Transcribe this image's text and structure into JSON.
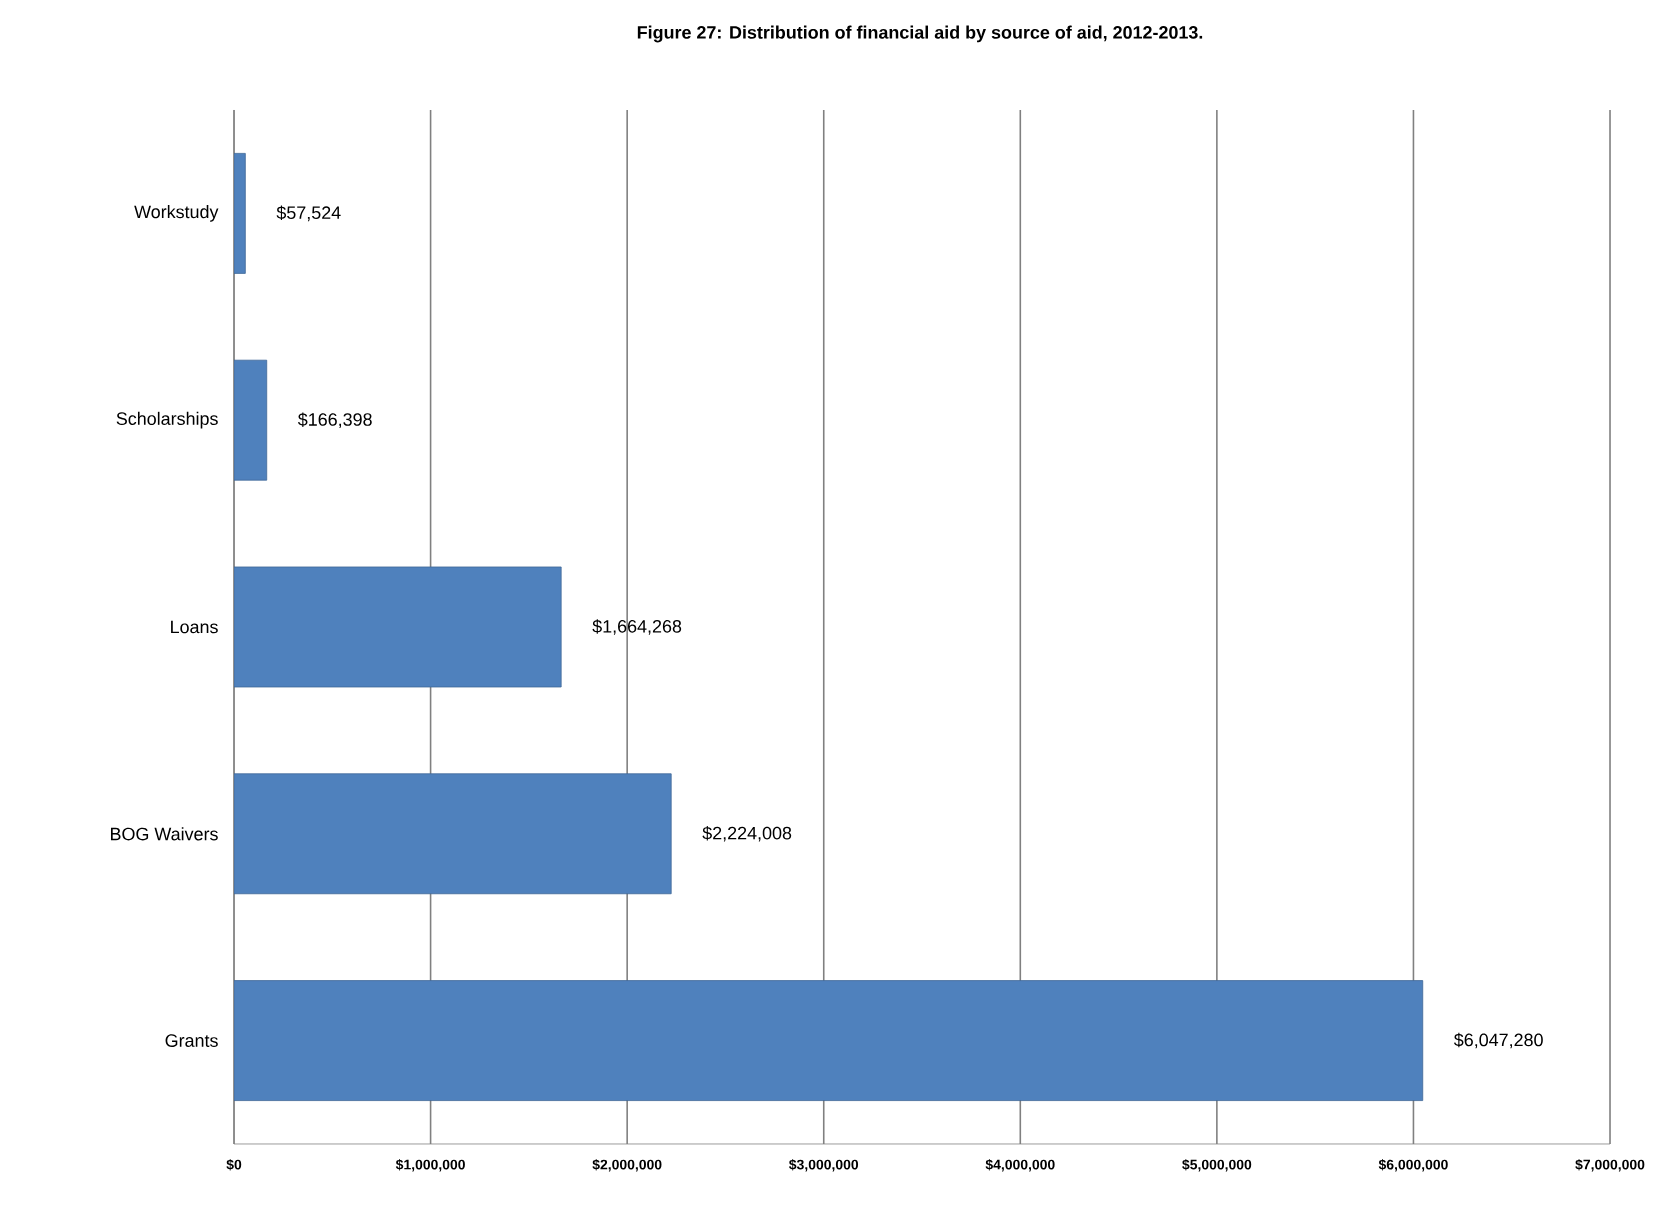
{
  "chart_data": {
    "type": "bar",
    "orientation": "horizontal",
    "title": "Figure 27:  Distribution  of financial  aid  by source of aid, 2012-2013.",
    "categories": [
      "Workstudy",
      "Scholarships",
      "Loans",
      "BOG Waivers",
      "Grants"
    ],
    "values": [
      57524,
      166398,
      1664268,
      2224008,
      6047280
    ],
    "value_labels": [
      "$57,524",
      "$166,398",
      "$1,664,268",
      "$2,224,008",
      "$6,047,280"
    ],
    "color": "#4f81bd",
    "xlim": [
      0,
      7000000
    ],
    "xticks": [
      {
        "value": 0,
        "label": "$0"
      },
      {
        "value": 1000000,
        "label": "$1,000,000"
      },
      {
        "value": 2000000,
        "label": "$2,000,000"
      },
      {
        "value": 3000000,
        "label": "$3,000,000"
      },
      {
        "value": 4000000,
        "label": "$4,000,000"
      },
      {
        "value": 5000000,
        "label": "$5,000,000"
      },
      {
        "value": 6000000,
        "label": "$6,000,000"
      },
      {
        "value": 7000000,
        "label": "$7,000,000"
      }
    ],
    "grid": "x"
  }
}
